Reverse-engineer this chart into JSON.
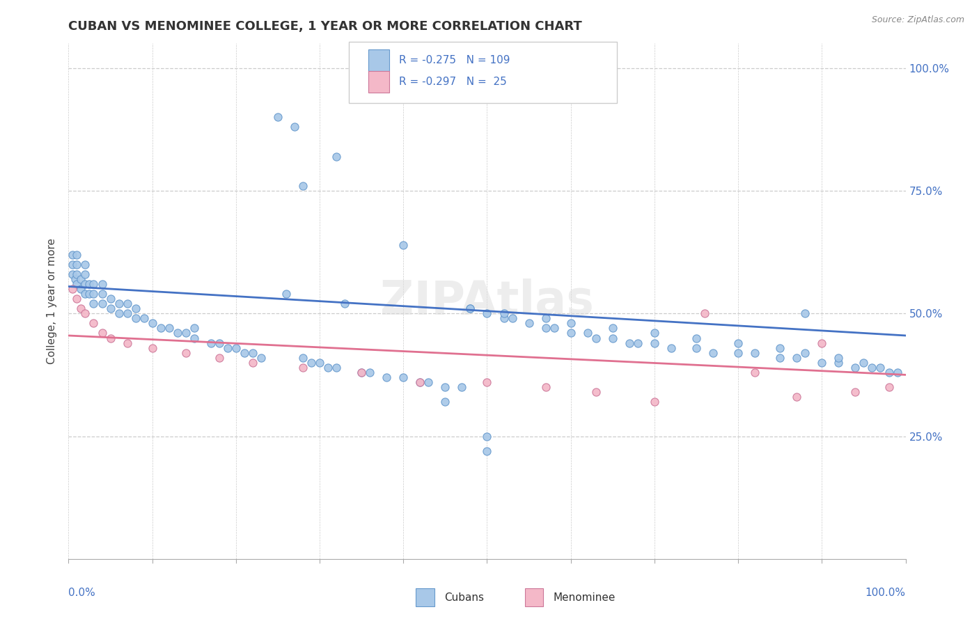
{
  "title": "CUBAN VS MENOMINEE COLLEGE, 1 YEAR OR MORE CORRELATION CHART",
  "source": "Source: ZipAtlas.com",
  "ylabel": "College, 1 year or more",
  "color_cubans_fill": "#A8C8E8",
  "color_cubans_edge": "#6699CC",
  "color_cubans_line": "#4472C4",
  "color_menominee_fill": "#F4B8C8",
  "color_menominee_edge": "#CC7799",
  "color_menominee_line": "#E07090",
  "color_text_blue": "#4472C4",
  "color_axis": "#AAAAAA",
  "color_grid": "#CCCCCC",
  "background": "#FFFFFF",
  "watermark_color": "#DDDDDD",
  "cubans_x": [
    0.005,
    0.005,
    0.005,
    0.008,
    0.01,
    0.01,
    0.01,
    0.01,
    0.015,
    0.015,
    0.02,
    0.02,
    0.02,
    0.02,
    0.025,
    0.025,
    0.03,
    0.03,
    0.03,
    0.04,
    0.04,
    0.04,
    0.05,
    0.05,
    0.06,
    0.06,
    0.07,
    0.07,
    0.08,
    0.08,
    0.09,
    0.1,
    0.11,
    0.12,
    0.13,
    0.14,
    0.15,
    0.15,
    0.17,
    0.18,
    0.19,
    0.2,
    0.21,
    0.22,
    0.23,
    0.25,
    0.26,
    0.27,
    0.28,
    0.29,
    0.3,
    0.31,
    0.32,
    0.33,
    0.35,
    0.36,
    0.38,
    0.4,
    0.42,
    0.43,
    0.45,
    0.47,
    0.48,
    0.5,
    0.5,
    0.52,
    0.53,
    0.55,
    0.57,
    0.58,
    0.6,
    0.62,
    0.63,
    0.65,
    0.67,
    0.68,
    0.7,
    0.72,
    0.75,
    0.77,
    0.8,
    0.82,
    0.85,
    0.87,
    0.88,
    0.9,
    0.92,
    0.94,
    0.96,
    0.98,
    0.28,
    0.32,
    0.4,
    0.48,
    0.52,
    0.57,
    0.6,
    0.65,
    0.7,
    0.75,
    0.8,
    0.85,
    0.88,
    0.92,
    0.95,
    0.97,
    0.99,
    0.45,
    0.5
  ],
  "cubans_y": [
    0.58,
    0.6,
    0.62,
    0.57,
    0.56,
    0.58,
    0.6,
    0.62,
    0.55,
    0.57,
    0.54,
    0.56,
    0.58,
    0.6,
    0.54,
    0.56,
    0.52,
    0.54,
    0.56,
    0.52,
    0.54,
    0.56,
    0.51,
    0.53,
    0.5,
    0.52,
    0.5,
    0.52,
    0.49,
    0.51,
    0.49,
    0.48,
    0.47,
    0.47,
    0.46,
    0.46,
    0.45,
    0.47,
    0.44,
    0.44,
    0.43,
    0.43,
    0.42,
    0.42,
    0.41,
    0.9,
    0.54,
    0.88,
    0.41,
    0.4,
    0.4,
    0.39,
    0.39,
    0.52,
    0.38,
    0.38,
    0.37,
    0.37,
    0.36,
    0.36,
    0.35,
    0.35,
    0.51,
    0.5,
    0.22,
    0.49,
    0.49,
    0.48,
    0.47,
    0.47,
    0.46,
    0.46,
    0.45,
    0.45,
    0.44,
    0.44,
    0.44,
    0.43,
    0.43,
    0.42,
    0.42,
    0.42,
    0.41,
    0.41,
    0.5,
    0.4,
    0.4,
    0.39,
    0.39,
    0.38,
    0.76,
    0.82,
    0.64,
    0.51,
    0.5,
    0.49,
    0.48,
    0.47,
    0.46,
    0.45,
    0.44,
    0.43,
    0.42,
    0.41,
    0.4,
    0.39,
    0.38,
    0.32,
    0.25
  ],
  "menominee_x": [
    0.005,
    0.01,
    0.015,
    0.02,
    0.03,
    0.04,
    0.05,
    0.07,
    0.1,
    0.14,
    0.18,
    0.22,
    0.28,
    0.35,
    0.42,
    0.5,
    0.57,
    0.63,
    0.7,
    0.76,
    0.82,
    0.87,
    0.9,
    0.94,
    0.98
  ],
  "menominee_y": [
    0.55,
    0.53,
    0.51,
    0.5,
    0.48,
    0.46,
    0.45,
    0.44,
    0.43,
    0.42,
    0.41,
    0.4,
    0.39,
    0.38,
    0.36,
    0.36,
    0.35,
    0.34,
    0.32,
    0.5,
    0.38,
    0.33,
    0.44,
    0.34,
    0.35
  ],
  "cubans_line_x0": 0.0,
  "cubans_line_x1": 1.0,
  "cubans_line_y0": 0.555,
  "cubans_line_y1": 0.455,
  "menominee_line_x0": 0.0,
  "menominee_line_x1": 1.0,
  "menominee_line_y0": 0.455,
  "menominee_line_y1": 0.375,
  "xlim": [
    0,
    1
  ],
  "ylim_min": 0.0,
  "ylim_max": 1.05,
  "ytick_vals": [
    0.25,
    0.5,
    0.75,
    1.0
  ],
  "ytick_labels": [
    "25.0%",
    "50.0%",
    "75.0%",
    "100.0%"
  ],
  "r1": "-0.275",
  "n1": "109",
  "r2": "-0.297",
  "n2": " 25"
}
